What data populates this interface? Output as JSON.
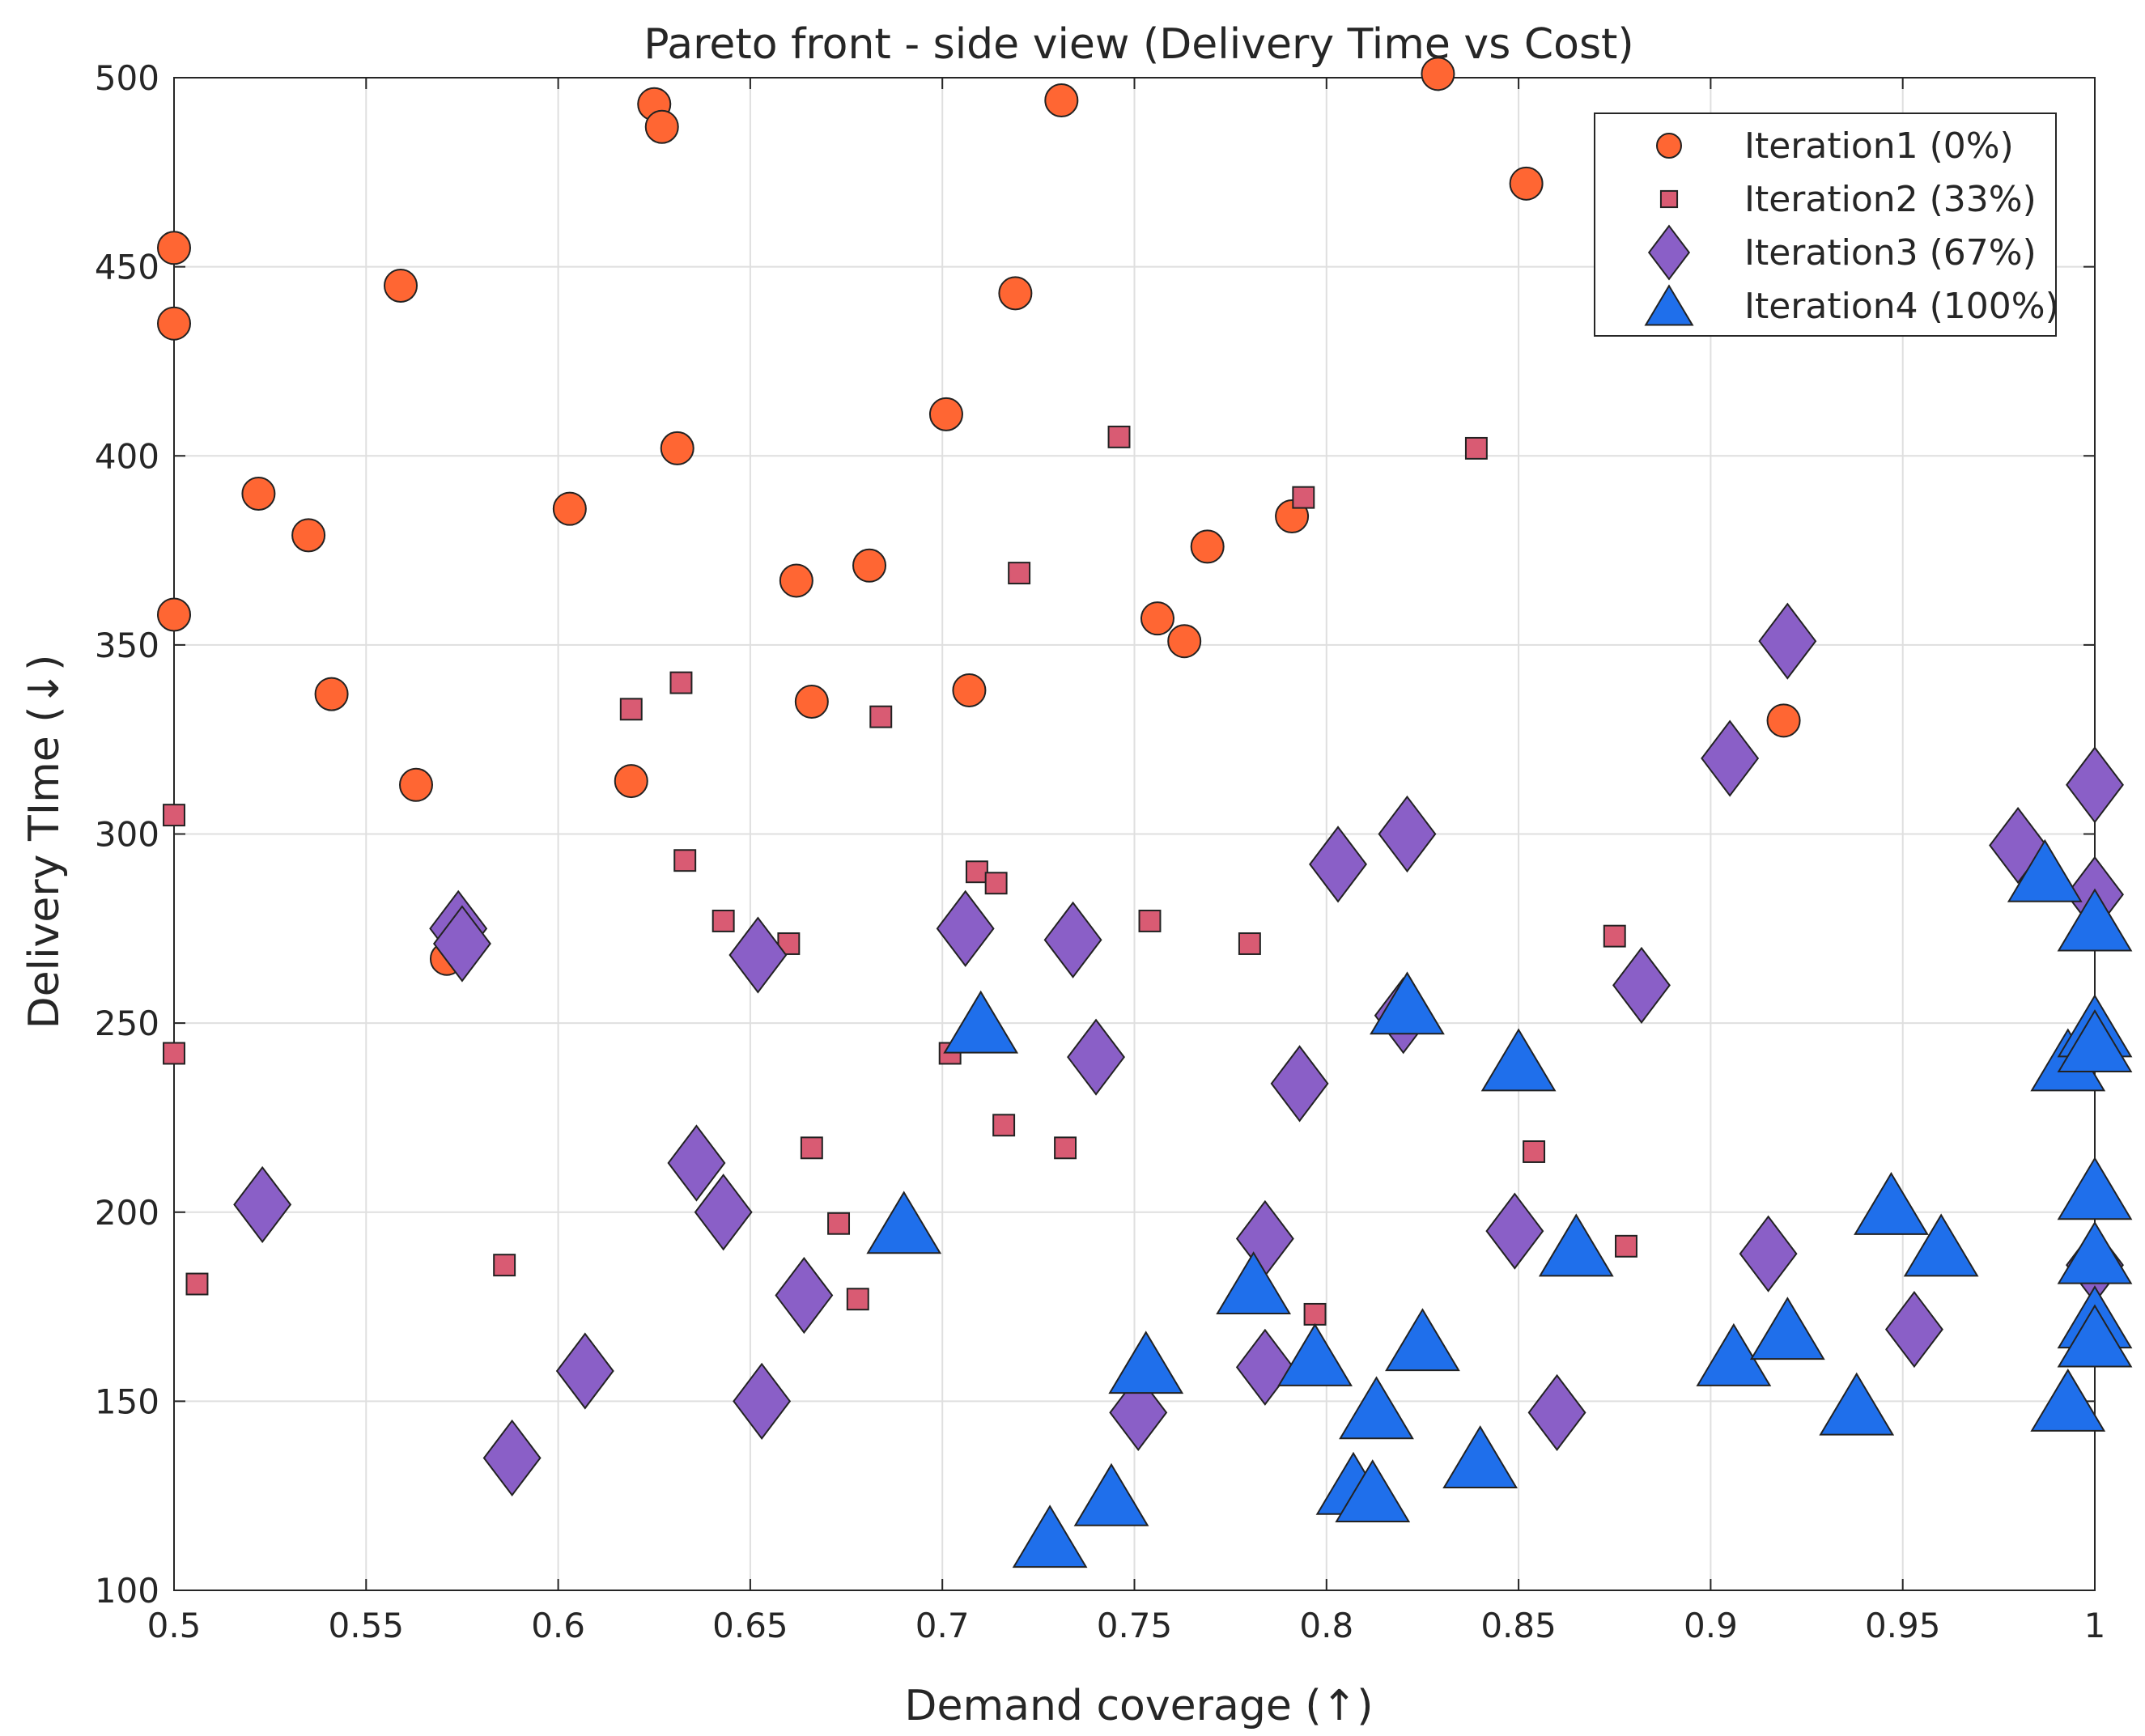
{
  "chart_data": {
    "type": "scatter",
    "title": "Pareto front - side view (Delivery Time vs Cost)",
    "xlabel": "Demand coverage (↑)",
    "ylabel": "Delivery TIme (↓)",
    "xlim": [
      0.5,
      1.0
    ],
    "ylim": [
      100,
      500
    ],
    "xticks": [
      0.5,
      0.55,
      0.6,
      0.65,
      0.7,
      0.75,
      0.8,
      0.85,
      0.9,
      0.95,
      1.0
    ],
    "xtick_labels": [
      "0.5",
      "0.55",
      "0.6",
      "0.65",
      "0.7",
      "0.75",
      "0.8",
      "0.85",
      "0.9",
      "0.95",
      "1"
    ],
    "yticks": [
      100,
      150,
      200,
      250,
      300,
      350,
      400,
      450,
      500
    ],
    "ytick_labels": [
      "100",
      "150",
      "200",
      "250",
      "300",
      "350",
      "400",
      "450",
      "500"
    ],
    "grid": true,
    "legend_position": "top-right",
    "series": [
      {
        "name": "Iteration1 (0%)",
        "marker": "circle",
        "color": "#FF6633",
        "points": [
          [
            0.5,
            455
          ],
          [
            0.5,
            435
          ],
          [
            0.5,
            358
          ],
          [
            0.522,
            390
          ],
          [
            0.535,
            379
          ],
          [
            0.541,
            337
          ],
          [
            0.559,
            445
          ],
          [
            0.563,
            313
          ],
          [
            0.571,
            267
          ],
          [
            0.575,
            270
          ],
          [
            0.603,
            386
          ],
          [
            0.619,
            314
          ],
          [
            0.625,
            493
          ],
          [
            0.627,
            487
          ],
          [
            0.631,
            402
          ],
          [
            0.662,
            367
          ],
          [
            0.666,
            335
          ],
          [
            0.681,
            371
          ],
          [
            0.701,
            411
          ],
          [
            0.707,
            338
          ],
          [
            0.719,
            443
          ],
          [
            0.731,
            494
          ],
          [
            0.756,
            357
          ],
          [
            0.763,
            351
          ],
          [
            0.769,
            376
          ],
          [
            0.791,
            384
          ],
          [
            0.829,
            501
          ],
          [
            0.852,
            472
          ],
          [
            0.919,
            330
          ]
        ]
      },
      {
        "name": "Iteration2 (33%)",
        "marker": "square",
        "color": "#D95B73",
        "points": [
          [
            0.5,
            305
          ],
          [
            0.5,
            242
          ],
          [
            0.506,
            181
          ],
          [
            0.586,
            186
          ],
          [
            0.619,
            333
          ],
          [
            0.632,
            340
          ],
          [
            0.633,
            293
          ],
          [
            0.643,
            277
          ],
          [
            0.66,
            271
          ],
          [
            0.666,
            217
          ],
          [
            0.673,
            197
          ],
          [
            0.678,
            177
          ],
          [
            0.684,
            331
          ],
          [
            0.702,
            242
          ],
          [
            0.709,
            290
          ],
          [
            0.714,
            287
          ],
          [
            0.716,
            223
          ],
          [
            0.72,
            369
          ],
          [
            0.732,
            217
          ],
          [
            0.746,
            405
          ],
          [
            0.754,
            277
          ],
          [
            0.78,
            271
          ],
          [
            0.794,
            389
          ],
          [
            0.797,
            173
          ],
          [
            0.839,
            402
          ],
          [
            0.854,
            216
          ],
          [
            0.875,
            273
          ],
          [
            0.878,
            191
          ],
          [
            1.0,
            275
          ]
        ]
      },
      {
        "name": "Iteration3 (67%)",
        "marker": "diamond",
        "color": "#8A5FC7",
        "points": [
          [
            0.523,
            202
          ],
          [
            0.574,
            275
          ],
          [
            0.575,
            271
          ],
          [
            0.588,
            135
          ],
          [
            0.607,
            158
          ],
          [
            0.636,
            213
          ],
          [
            0.643,
            200
          ],
          [
            0.652,
            268
          ],
          [
            0.653,
            150
          ],
          [
            0.664,
            178
          ],
          [
            0.706,
            275
          ],
          [
            0.734,
            272
          ],
          [
            0.74,
            241
          ],
          [
            0.751,
            147
          ],
          [
            0.784,
            193
          ],
          [
            0.784,
            159
          ],
          [
            0.793,
            234
          ],
          [
            0.803,
            292
          ],
          [
            0.821,
            300
          ],
          [
            0.82,
            252
          ],
          [
            0.849,
            195
          ],
          [
            0.86,
            147
          ],
          [
            0.882,
            260
          ],
          [
            0.905,
            320
          ],
          [
            0.915,
            189
          ],
          [
            0.92,
            351
          ],
          [
            0.953,
            169
          ],
          [
            0.98,
            297
          ],
          [
            1.0,
            313
          ],
          [
            1.0,
            284
          ],
          [
            1.0,
            186
          ]
        ]
      },
      {
        "name": "Iteration4 (100%)",
        "marker": "triangle",
        "color": "#1F6FEB",
        "points": [
          [
            0.69,
            197
          ],
          [
            0.71,
            250
          ],
          [
            0.728,
            114
          ],
          [
            0.744,
            125
          ],
          [
            0.753,
            160
          ],
          [
            0.781,
            181
          ],
          [
            0.797,
            162
          ],
          [
            0.807,
            128
          ],
          [
            0.812,
            126
          ],
          [
            0.813,
            148
          ],
          [
            0.821,
            255
          ],
          [
            0.825,
            166
          ],
          [
            0.84,
            135
          ],
          [
            0.85,
            240
          ],
          [
            0.865,
            191
          ],
          [
            0.906,
            162
          ],
          [
            0.92,
            169
          ],
          [
            0.938,
            149
          ],
          [
            0.947,
            202
          ],
          [
            0.96,
            191
          ],
          [
            0.987,
            290
          ],
          [
            0.993,
            240
          ],
          [
            0.993,
            150
          ],
          [
            1.0,
            277
          ],
          [
            1.0,
            249
          ],
          [
            1.0,
            245
          ],
          [
            1.0,
            206
          ],
          [
            1.0,
            189
          ],
          [
            1.0,
            172
          ],
          [
            1.0,
            167
          ]
        ]
      }
    ]
  }
}
